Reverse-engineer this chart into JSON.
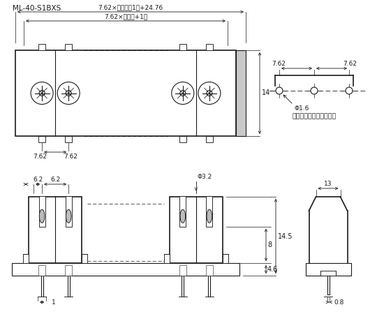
{
  "bg_color": "#ffffff",
  "line_color": "#1a1a1a",
  "annotations": {
    "top_label": "ML-40-S1BXS",
    "dim1": "7.62×（極数－1）+24.76",
    "dim2": "7.62×（極数+1）",
    "dim_762a": "7.62",
    "dim_762b": "7.62",
    "dim_14": "14",
    "dim_762c": "7.62",
    "dim_762d": "7.62",
    "dim_phi16": "Φ1.6",
    "pcb_label": "プリント基板用取付孔例",
    "dim_62a": "6.2",
    "dim_62b": "6.2",
    "dim_phi32": "Φ3.2",
    "dim_14_5": "14.5",
    "dim_8": "8",
    "dim_46": "4.6",
    "dim_1": "1",
    "dim_13": "13",
    "dim_08": "0.8"
  }
}
